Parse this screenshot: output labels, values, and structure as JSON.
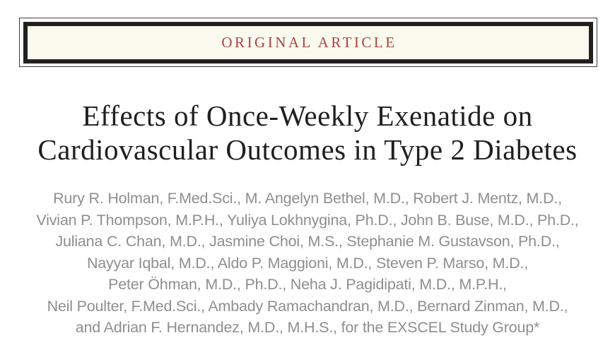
{
  "banner": {
    "label": "ORIGINAL ARTICLE"
  },
  "title": {
    "line1": "Effects of Once-Weekly Exenatide on",
    "line2": "Cardiovascular Outcomes in Type 2 Diabetes"
  },
  "authors": {
    "lines": [
      "Rury R. Holman, F.Med.Sci., M. Angelyn Bethel, M.D., Robert J. Mentz, M.D.,",
      "Vivian P. Thompson, M.P.H., Yuliya Lokhnygina, Ph.D., John B. Buse, M.D., Ph.D.,",
      "Juliana C. Chan, M.D., Jasmine Choi, M.S., Stephanie M. Gustavson, Ph.D.,",
      "Nayyar Iqbal, M.D., Aldo P. Maggioni, M.D., Steven P. Marso, M.D.,",
      "Peter Öhman, M.D., Ph.D., Neha J. Pagidipati, M.D., M.P.H.,",
      "Neil Poulter, F.Med.Sci., Ambady Ramachandran, M.D., Bernard Zinman, M.D.,",
      "and Adrian F. Hernandez, M.D., M.H.S., for the EXSCEL Study Group*"
    ]
  },
  "colors": {
    "banner_text": "#ae4340",
    "banner_background": "#fbfaef",
    "banner_border": "#21201e",
    "title_text": "#1f1f1f",
    "author_text": "#8e8e8e",
    "page_background": "#ffffff"
  }
}
